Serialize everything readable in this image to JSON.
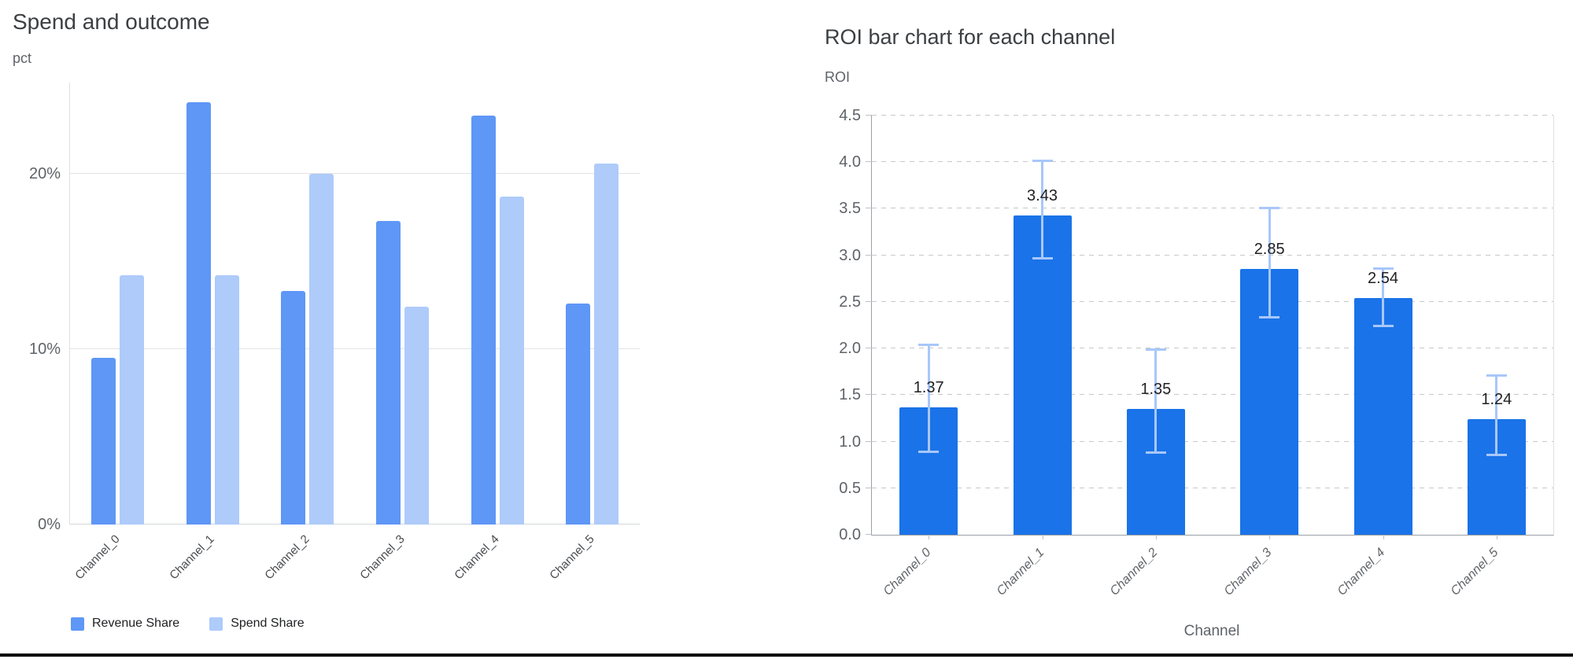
{
  "page": {
    "background": "#ffffff",
    "bottom_rule_color": "#000000"
  },
  "chart_data": [
    {
      "type": "bar",
      "title": "Spend and outcome",
      "ylabel": "pct",
      "xlabel": "",
      "categories": [
        "Channel_0",
        "Channel_1",
        "Channel_2",
        "Channel_3",
        "Channel_4",
        "Channel_5"
      ],
      "series": [
        {
          "name": "Revenue Share",
          "color": "#5E97F6",
          "values": [
            9.5,
            24.1,
            13.3,
            17.3,
            23.3,
            12.6
          ]
        },
        {
          "name": "Spend Share",
          "color": "#AECBFA",
          "values": [
            14.2,
            14.2,
            20.0,
            12.4,
            18.7,
            20.6
          ]
        }
      ],
      "ylim": [
        0,
        25.2
      ],
      "yticks": [
        0,
        10,
        20
      ],
      "ytick_labels": [
        "0%",
        "10%",
        "20%"
      ],
      "grid": "solid",
      "legend_position": "bottom-left"
    },
    {
      "type": "bar",
      "title": "ROI bar chart for each channel",
      "ylabel": "ROI",
      "xlabel": "Channel",
      "categories": [
        "Channel_0",
        "Channel_1",
        "Channel_2",
        "Channel_3",
        "Channel_4",
        "Channel_5"
      ],
      "series": [
        {
          "name": "ROI",
          "color": "#1A73E8",
          "values": [
            1.37,
            3.43,
            1.35,
            2.85,
            2.54,
            1.24
          ]
        }
      ],
      "value_labels": [
        "1.37",
        "3.43",
        "1.35",
        "2.85",
        "2.54",
        "1.24"
      ],
      "error_bars": {
        "color": "#A8C7FA",
        "low": [
          0.89,
          2.96,
          0.88,
          2.33,
          2.24,
          0.85
        ],
        "high": [
          2.04,
          4.02,
          1.99,
          3.51,
          2.86,
          1.71
        ]
      },
      "ylim": [
        0,
        4.5
      ],
      "yticks": [
        0,
        0.5,
        1.0,
        1.5,
        2.0,
        2.5,
        3.0,
        3.5,
        4.0,
        4.5
      ],
      "ytick_labels": [
        "0.0",
        "0.5",
        "1.0",
        "1.5",
        "2.0",
        "2.5",
        "3.0",
        "3.5",
        "4.0",
        "4.5"
      ],
      "grid": "dashed",
      "legend_position": "none"
    }
  ]
}
